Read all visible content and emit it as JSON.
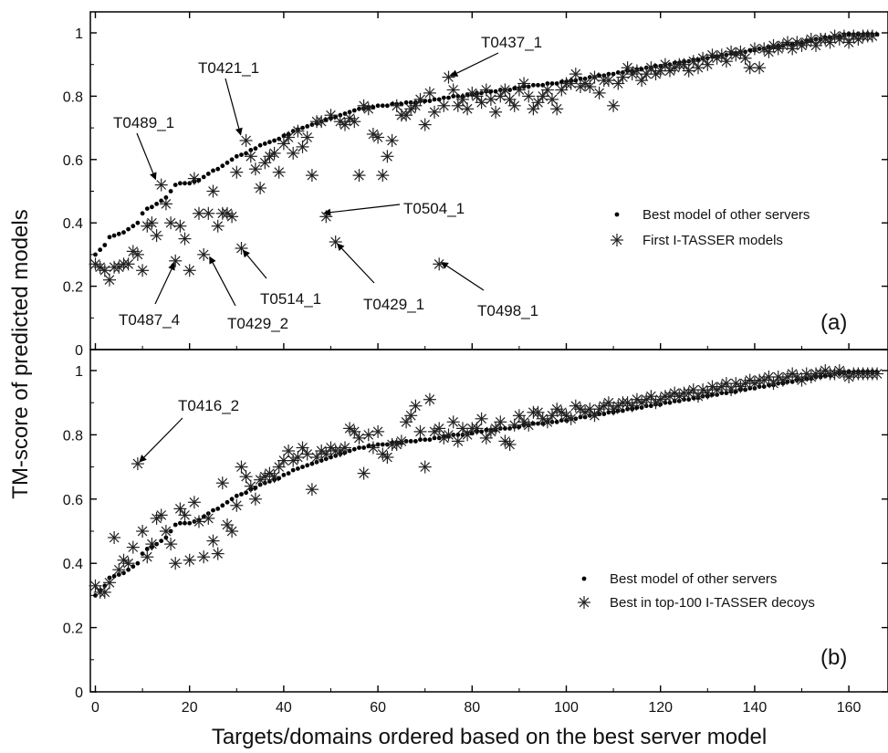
{
  "figure": {
    "ylabel": "TM-score of predicted models",
    "xlabel": "Targets/domains ordered based on the best server model",
    "x_ticks": [
      "0",
      "20",
      "40",
      "60",
      "80",
      "100",
      "120",
      "140",
      "160"
    ]
  },
  "chart_data": [
    {
      "type": "scatter",
      "panel_label": "(a)",
      "xlim": [
        0,
        165
      ],
      "ylim": [
        0,
        1.05
      ],
      "y_ticks": [
        "0",
        "0.2",
        "0.4",
        "0.6",
        "0.8",
        "1"
      ],
      "legend_position": "center-right",
      "series": [
        {
          "name": "Best  model of other servers",
          "marker": "dot",
          "values": [
            0.3,
            0.315,
            0.33,
            0.355,
            0.36,
            0.365,
            0.37,
            0.38,
            0.39,
            0.4,
            0.43,
            0.445,
            0.45,
            0.46,
            0.47,
            0.48,
            0.5,
            0.52,
            0.525,
            0.525,
            0.525,
            0.53,
            0.535,
            0.545,
            0.555,
            0.565,
            0.57,
            0.58,
            0.59,
            0.6,
            0.61,
            0.615,
            0.62,
            0.63,
            0.635,
            0.645,
            0.65,
            0.655,
            0.66,
            0.665,
            0.675,
            0.68,
            0.69,
            0.695,
            0.7,
            0.705,
            0.71,
            0.715,
            0.72,
            0.725,
            0.73,
            0.735,
            0.74,
            0.745,
            0.75,
            0.755,
            0.76,
            0.76,
            0.765,
            0.765,
            0.77,
            0.77,
            0.77,
            0.775,
            0.775,
            0.775,
            0.78,
            0.78,
            0.78,
            0.785,
            0.785,
            0.785,
            0.79,
            0.79,
            0.795,
            0.795,
            0.8,
            0.8,
            0.8,
            0.805,
            0.805,
            0.81,
            0.81,
            0.815,
            0.815,
            0.815,
            0.82,
            0.82,
            0.82,
            0.825,
            0.825,
            0.83,
            0.83,
            0.835,
            0.835,
            0.835,
            0.84,
            0.84,
            0.84,
            0.845,
            0.845,
            0.85,
            0.85,
            0.855,
            0.855,
            0.86,
            0.86,
            0.865,
            0.865,
            0.87,
            0.87,
            0.875,
            0.875,
            0.88,
            0.88,
            0.885,
            0.885,
            0.89,
            0.89,
            0.895,
            0.895,
            0.9,
            0.9,
            0.905,
            0.905,
            0.91,
            0.91,
            0.915,
            0.915,
            0.92,
            0.92,
            0.925,
            0.925,
            0.93,
            0.93,
            0.935,
            0.935,
            0.94,
            0.94,
            0.945,
            0.945,
            0.95,
            0.95,
            0.955,
            0.955,
            0.96,
            0.96,
            0.965,
            0.965,
            0.97,
            0.97,
            0.975,
            0.975,
            0.98,
            0.98,
            0.985,
            0.985,
            0.99,
            0.99,
            0.995,
            0.995,
            0.995,
            0.995,
            0.995,
            0.995,
            0.995,
            0.995
          ]
        },
        {
          "name": "First I-TASSER models",
          "marker": "asterisk",
          "values": [
            0.27,
            0.26,
            0.25,
            0.22,
            0.26,
            0.26,
            0.27,
            0.27,
            0.31,
            0.3,
            0.25,
            0.39,
            0.4,
            0.36,
            0.52,
            0.46,
            0.4,
            0.28,
            0.39,
            0.35,
            0.25,
            0.54,
            0.43,
            0.3,
            0.43,
            0.5,
            0.39,
            0.43,
            0.43,
            0.42,
            0.56,
            0.32,
            0.66,
            0.61,
            0.57,
            0.51,
            0.59,
            0.61,
            0.62,
            0.56,
            0.65,
            0.67,
            0.62,
            0.69,
            0.64,
            0.67,
            0.55,
            0.72,
            0.72,
            0.42,
            0.74,
            0.34,
            0.72,
            0.71,
            0.73,
            0.72,
            0.55,
            0.77,
            0.76,
            0.68,
            0.67,
            0.55,
            0.61,
            0.66,
            0.77,
            0.74,
            0.74,
            0.76,
            0.77,
            0.79,
            0.71,
            0.81,
            0.75,
            0.27,
            0.77,
            0.86,
            0.82,
            0.77,
            0.79,
            0.76,
            0.81,
            0.8,
            0.78,
            0.82,
            0.79,
            0.75,
            0.8,
            0.82,
            0.79,
            0.77,
            0.82,
            0.84,
            0.8,
            0.76,
            0.78,
            0.8,
            0.82,
            0.79,
            0.76,
            0.82,
            0.84,
            0.84,
            0.87,
            0.83,
            0.84,
            0.83,
            0.86,
            0.81,
            0.85,
            0.85,
            0.77,
            0.84,
            0.86,
            0.89,
            0.87,
            0.88,
            0.85,
            0.87,
            0.89,
            0.87,
            0.88,
            0.9,
            0.88,
            0.89,
            0.9,
            0.9,
            0.88,
            0.91,
            0.89,
            0.92,
            0.9,
            0.93,
            0.92,
            0.93,
            0.91,
            0.94,
            0.93,
            0.94,
            0.92,
            0.89,
            0.95,
            0.89,
            0.95,
            0.94,
            0.96,
            0.95,
            0.96,
            0.97,
            0.95,
            0.97,
            0.96,
            0.97,
            0.98,
            0.96,
            0.98,
            0.98,
            0.97,
            0.99,
            0.98,
            0.99,
            0.97,
            0.99,
            0.98,
            0.99,
            0.99,
            0.99
          ]
        }
      ],
      "annotations": [
        {
          "text": "T0437_1",
          "x": 76,
          "y": 0.86
        },
        {
          "text": "T0421_1",
          "x": 32,
          "y": 0.67
        },
        {
          "text": "T0489_1",
          "x": 14,
          "y": 0.53
        },
        {
          "text": "T0504_1",
          "x": 49,
          "y": 0.43
        },
        {
          "text": "T0514_1",
          "x": 32,
          "y": 0.32
        },
        {
          "text": "T0429_1",
          "x": 52,
          "y": 0.34
        },
        {
          "text": "T0498_1",
          "x": 74,
          "y": 0.28
        },
        {
          "text": "T0487_4",
          "x": 18,
          "y": 0.28
        },
        {
          "text": "T0429_2",
          "x": 25,
          "y": 0.3
        }
      ]
    },
    {
      "type": "scatter",
      "panel_label": "(b)",
      "xlim": [
        0,
        165
      ],
      "ylim": [
        0,
        1.05
      ],
      "y_ticks": [
        "0",
        "0.2",
        "0.4",
        "0.6",
        "0.8",
        "1"
      ],
      "legend_position": "bottom-right",
      "series": [
        {
          "name": "Best  model of other servers",
          "marker": "dot",
          "values": [
            0.3,
            0.315,
            0.33,
            0.355,
            0.36,
            0.365,
            0.37,
            0.38,
            0.39,
            0.4,
            0.43,
            0.445,
            0.45,
            0.46,
            0.47,
            0.48,
            0.5,
            0.52,
            0.525,
            0.525,
            0.525,
            0.53,
            0.535,
            0.545,
            0.555,
            0.565,
            0.57,
            0.58,
            0.59,
            0.6,
            0.61,
            0.615,
            0.62,
            0.63,
            0.635,
            0.645,
            0.65,
            0.655,
            0.66,
            0.665,
            0.675,
            0.68,
            0.69,
            0.695,
            0.7,
            0.705,
            0.71,
            0.715,
            0.72,
            0.725,
            0.73,
            0.735,
            0.74,
            0.745,
            0.75,
            0.755,
            0.76,
            0.76,
            0.765,
            0.765,
            0.77,
            0.77,
            0.77,
            0.775,
            0.775,
            0.775,
            0.78,
            0.78,
            0.78,
            0.785,
            0.785,
            0.785,
            0.79,
            0.79,
            0.795,
            0.795,
            0.8,
            0.8,
            0.8,
            0.805,
            0.805,
            0.81,
            0.81,
            0.815,
            0.815,
            0.815,
            0.82,
            0.82,
            0.82,
            0.825,
            0.825,
            0.83,
            0.83,
            0.835,
            0.835,
            0.835,
            0.84,
            0.84,
            0.84,
            0.845,
            0.845,
            0.85,
            0.85,
            0.855,
            0.855,
            0.86,
            0.86,
            0.865,
            0.865,
            0.87,
            0.87,
            0.875,
            0.875,
            0.88,
            0.88,
            0.885,
            0.885,
            0.89,
            0.89,
            0.895,
            0.895,
            0.9,
            0.9,
            0.905,
            0.905,
            0.91,
            0.91,
            0.915,
            0.915,
            0.92,
            0.92,
            0.925,
            0.925,
            0.93,
            0.93,
            0.935,
            0.935,
            0.94,
            0.94,
            0.945,
            0.945,
            0.95,
            0.95,
            0.955,
            0.955,
            0.96,
            0.96,
            0.965,
            0.965,
            0.97,
            0.97,
            0.975,
            0.975,
            0.98,
            0.98,
            0.985,
            0.985,
            0.99,
            0.99,
            0.995,
            0.995,
            0.995,
            0.995,
            0.995,
            0.995,
            0.995,
            0.995
          ]
        },
        {
          "name": "Best in top-100 I-TASSER decoys",
          "marker": "asterisk",
          "values": [
            0.33,
            0.31,
            0.31,
            0.34,
            0.48,
            0.38,
            0.41,
            0.4,
            0.45,
            0.71,
            0.5,
            0.42,
            0.46,
            0.54,
            0.55,
            0.5,
            0.46,
            0.4,
            0.57,
            0.55,
            0.41,
            0.59,
            0.53,
            0.42,
            0.54,
            0.47,
            0.43,
            0.65,
            0.52,
            0.5,
            0.58,
            0.7,
            0.67,
            0.64,
            0.6,
            0.66,
            0.67,
            0.68,
            0.67,
            0.7,
            0.72,
            0.75,
            0.72,
            0.73,
            0.76,
            0.74,
            0.63,
            0.73,
            0.75,
            0.74,
            0.76,
            0.75,
            0.75,
            0.76,
            0.82,
            0.81,
            0.79,
            0.68,
            0.8,
            0.76,
            0.81,
            0.74,
            0.73,
            0.77,
            0.77,
            0.78,
            0.84,
            0.86,
            0.89,
            0.81,
            0.7,
            0.91,
            0.81,
            0.82,
            0.79,
            0.8,
            0.84,
            0.78,
            0.82,
            0.8,
            0.82,
            0.82,
            0.85,
            0.79,
            0.81,
            0.82,
            0.84,
            0.78,
            0.77,
            0.83,
            0.86,
            0.84,
            0.83,
            0.87,
            0.87,
            0.85,
            0.84,
            0.86,
            0.88,
            0.87,
            0.86,
            0.85,
            0.89,
            0.88,
            0.87,
            0.88,
            0.86,
            0.88,
            0.89,
            0.9,
            0.88,
            0.89,
            0.9,
            0.9,
            0.89,
            0.91,
            0.9,
            0.91,
            0.92,
            0.9,
            0.91,
            0.92,
            0.92,
            0.93,
            0.92,
            0.93,
            0.93,
            0.94,
            0.92,
            0.94,
            0.93,
            0.95,
            0.94,
            0.95,
            0.96,
            0.94,
            0.96,
            0.95,
            0.96,
            0.97,
            0.96,
            0.97,
            0.97,
            0.98,
            0.96,
            0.98,
            0.97,
            0.98,
            0.99,
            0.98,
            0.97,
            0.99,
            0.98,
            0.99,
            0.99,
            1.0,
            0.99,
            0.99,
            1.0,
            0.99,
            0.98,
            0.99,
            0.99,
            0.99,
            0.99,
            0.99,
            0.99
          ]
        }
      ],
      "annotations": [
        {
          "text": "T0416_2",
          "x": 10,
          "y": 0.71
        }
      ]
    }
  ]
}
